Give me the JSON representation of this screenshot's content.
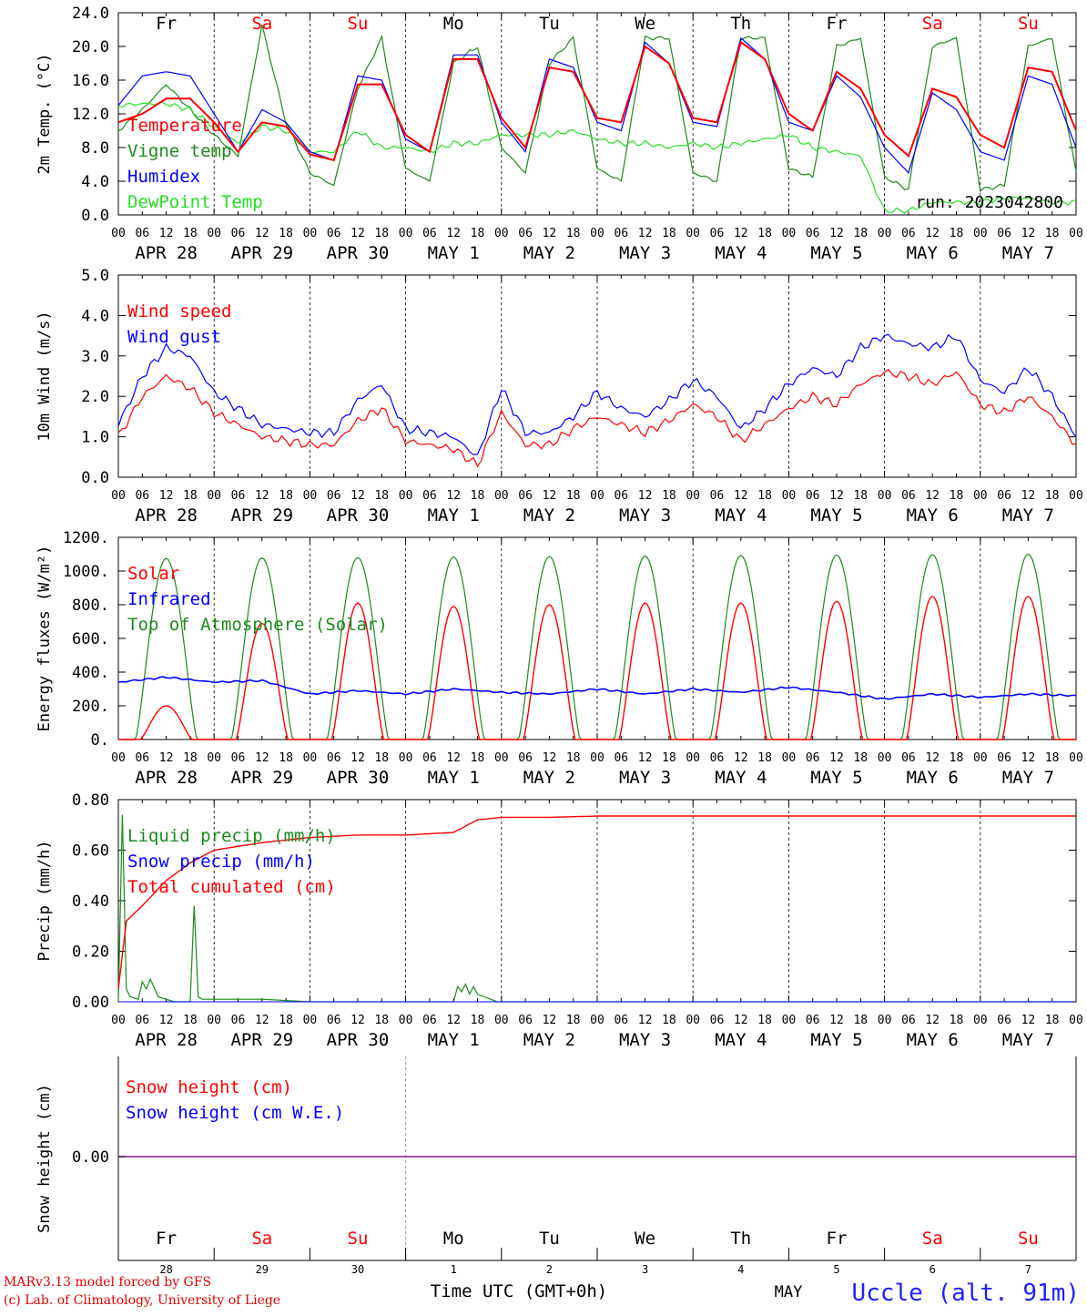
{
  "colors": {
    "red": "#ff0000",
    "dark_green": "#1c8a1c",
    "light_green": "#22e022",
    "blue": "#0000ff",
    "purple": "#8a1a8a",
    "black": "#000000",
    "weekend": "#ff0000",
    "station": "#2020ff"
  },
  "x_axis": {
    "range_hours": [
      0,
      240
    ],
    "hour_ticks": [
      "00",
      "06",
      "12",
      "18"
    ],
    "date_labels": [
      "APR 28",
      "APR 29",
      "APR 30",
      "MAY  1",
      "MAY  2",
      "MAY  3",
      "MAY  4",
      "MAY  5",
      "MAY  6",
      "MAY  7"
    ],
    "weekdays": [
      {
        "label": "Fr",
        "weekend": false
      },
      {
        "label": "Sa",
        "weekend": true
      },
      {
        "label": "Su",
        "weekend": true
      },
      {
        "label": "Mo",
        "weekend": false
      },
      {
        "label": "Tu",
        "weekend": false
      },
      {
        "label": "We",
        "weekend": false
      },
      {
        "label": "Th",
        "weekend": false
      },
      {
        "label": "Fr",
        "weekend": false
      },
      {
        "label": "Sa",
        "weekend": true
      },
      {
        "label": "Su",
        "weekend": true
      }
    ],
    "day_numbers": [
      "28",
      "29",
      "30",
      "1",
      "2",
      "3",
      "4",
      "5",
      "6",
      "7"
    ],
    "month_label": "MAY",
    "title": "Time UTC (GMT+0h)"
  },
  "footer": {
    "credit_line1": "MARv3.13 model forced by GFS",
    "credit_line2": "(c) Lab. of Climatology, University of Liege",
    "station": "Uccle (alt. 91m)"
  },
  "chart_data": [
    {
      "id": "temperature",
      "type": "line",
      "ylabel": "2m Temp. (°C)",
      "ylim": [
        0,
        24
      ],
      "yticks": [
        "0.0",
        "4.0",
        "8.0",
        "12.0",
        "16.0",
        "20.0",
        "24.0"
      ],
      "run_label": "run: 2023042800",
      "x_hours": [
        0,
        6,
        12,
        18,
        24,
        30,
        36,
        42,
        48,
        54,
        60,
        66,
        72,
        78,
        84,
        90,
        96,
        102,
        108,
        114,
        120,
        126,
        132,
        138,
        144,
        150,
        156,
        162,
        168,
        174,
        180,
        186,
        192,
        198,
        204,
        210,
        216,
        222,
        228,
        234,
        240
      ],
      "series": [
        {
          "name": "Temperature",
          "color_key": "red",
          "values": [
            11.0,
            12.0,
            13.8,
            13.8,
            11.0,
            7.5,
            11.0,
            10.5,
            7.2,
            6.5,
            15.5,
            15.5,
            9.5,
            7.5,
            18.5,
            18.5,
            11.5,
            8.0,
            17.5,
            17.0,
            11.5,
            11.0,
            20.0,
            18.0,
            11.5,
            11.0,
            20.5,
            18.5,
            12.0,
            10.0,
            17.0,
            15.0,
            9.5,
            7.0,
            15.0,
            14.0,
            9.5,
            8.0,
            17.5,
            17.0,
            10.0
          ]
        },
        {
          "name": "Vigne temp",
          "color_key": "dark_green",
          "values": [
            10.0,
            12.5,
            15.5,
            12.5,
            9.5,
            7.0,
            22.5,
            11.0,
            5.0,
            3.5,
            15.0,
            21.0,
            5.5,
            4.0,
            18.0,
            20.0,
            8.0,
            5.0,
            18.0,
            21.0,
            5.5,
            4.0,
            21.0,
            21.0,
            5.0,
            4.0,
            21.0,
            21.0,
            5.5,
            4.5,
            20.0,
            21.0,
            4.5,
            3.0,
            20.0,
            21.0,
            3.0,
            3.5,
            20.0,
            21.0,
            5.0
          ]
        },
        {
          "name": "Humidex",
          "color_key": "blue",
          "values": [
            13.0,
            16.5,
            17.0,
            16.5,
            12.0,
            7.5,
            12.5,
            11.0,
            7.5,
            6.5,
            16.5,
            16.0,
            9.0,
            7.5,
            19.0,
            19.0,
            11.0,
            7.5,
            18.5,
            17.5,
            11.0,
            10.0,
            20.5,
            18.0,
            11.0,
            10.5,
            21.0,
            18.5,
            11.0,
            10.0,
            16.5,
            14.0,
            8.0,
            5.0,
            14.5,
            12.5,
            7.5,
            6.5,
            16.5,
            15.5,
            8.0
          ]
        },
        {
          "name": "DewPoint Temp",
          "color_key": "light_green",
          "values": [
            13.0,
            13.2,
            13.2,
            12.5,
            10.5,
            8.5,
            10.5,
            10.0,
            7.5,
            7.5,
            10.0,
            8.0,
            8.0,
            7.5,
            8.5,
            8.5,
            9.5,
            9.5,
            9.5,
            10.0,
            9.0,
            8.5,
            8.5,
            8.0,
            8.5,
            8.0,
            8.5,
            9.0,
            9.5,
            8.0,
            7.5,
            7.0,
            0.5,
            0.5,
            1.5,
            1.5,
            1.5,
            2.0,
            2.0,
            1.5,
            1.5
          ]
        }
      ]
    },
    {
      "id": "wind",
      "type": "line",
      "ylabel": "10m Wind (m/s)",
      "ylim": [
        0,
        5
      ],
      "yticks": [
        "0.0",
        "1.0",
        "2.0",
        "3.0",
        "4.0",
        "5.0"
      ],
      "x_hours": [
        0,
        6,
        12,
        18,
        24,
        30,
        36,
        42,
        48,
        54,
        60,
        66,
        72,
        78,
        84,
        90,
        96,
        102,
        108,
        114,
        120,
        126,
        132,
        138,
        144,
        150,
        156,
        162,
        168,
        174,
        180,
        186,
        192,
        198,
        204,
        210,
        216,
        222,
        228,
        234,
        240
      ],
      "series": [
        {
          "name": "Wind speed",
          "color_key": "red",
          "values": [
            1.0,
            2.0,
            2.5,
            2.2,
            1.6,
            1.3,
            1.0,
            0.9,
            0.8,
            0.8,
            1.4,
            1.7,
            0.9,
            0.8,
            0.7,
            0.3,
            1.6,
            0.8,
            0.8,
            1.2,
            1.5,
            1.3,
            1.1,
            1.4,
            1.8,
            1.5,
            0.9,
            1.3,
            1.7,
            2.0,
            1.8,
            2.3,
            2.6,
            2.5,
            2.3,
            2.6,
            1.8,
            1.6,
            2.0,
            1.5,
            0.8
          ]
        },
        {
          "name": "Wind gust",
          "color_key": "blue",
          "values": [
            1.3,
            2.5,
            3.2,
            3.0,
            2.1,
            1.7,
            1.3,
            1.2,
            1.1,
            1.1,
            1.9,
            2.3,
            1.2,
            1.1,
            1.0,
            0.5,
            2.2,
            1.1,
            1.1,
            1.5,
            2.1,
            1.7,
            1.5,
            1.9,
            2.4,
            2.0,
            1.2,
            1.7,
            2.3,
            2.7,
            2.5,
            3.2,
            3.5,
            3.3,
            3.2,
            3.5,
            2.4,
            2.1,
            2.7,
            2.0,
            1.0
          ]
        }
      ]
    },
    {
      "id": "energy",
      "type": "line",
      "ylabel": "Energy fluxes (W/m²)",
      "ylim": [
        0,
        1200
      ],
      "yticks": [
        "0.",
        "200.",
        "400.",
        "600.",
        "800.",
        "1000.",
        "1200."
      ],
      "series": [
        {
          "name": "Solar",
          "color_key": "red",
          "daily_peak": [
            200,
            690,
            810,
            790,
            800,
            810,
            810,
            820,
            850,
            850
          ]
        },
        {
          "name": "Infrared",
          "color_key": "blue",
          "hours": [
            0,
            12,
            24,
            36,
            48,
            60,
            72,
            84,
            96,
            108,
            120,
            132,
            144,
            156,
            168,
            180,
            192,
            204,
            216,
            228,
            240
          ],
          "values": [
            340,
            370,
            340,
            350,
            270,
            290,
            270,
            300,
            280,
            270,
            300,
            270,
            300,
            280,
            310,
            280,
            240,
            270,
            250,
            270,
            260
          ]
        },
        {
          "name": "Top of Atmosphere (Solar)",
          "color_key": "dark_green",
          "daily_peak": [
            1075,
            1078,
            1080,
            1083,
            1086,
            1089,
            1092,
            1095,
            1098,
            1100
          ]
        }
      ]
    },
    {
      "id": "precip",
      "type": "line",
      "ylabel": "Precip (mm/h)",
      "ylim": [
        0,
        0.8
      ],
      "yticks": [
        "0.00",
        "0.20",
        "0.40",
        "0.60",
        "0.80"
      ],
      "series": [
        {
          "name": "Liquid precip (mm/h)",
          "color_key": "dark_green",
          "hours": [
            0,
            1,
            2,
            3,
            5,
            6,
            7,
            8,
            10,
            14,
            18,
            19,
            20,
            21,
            24,
            36,
            48,
            84,
            85,
            86,
            87,
            88,
            89,
            90,
            95,
            240
          ],
          "values": [
            0.0,
            0.74,
            0.05,
            0.02,
            0.01,
            0.08,
            0.05,
            0.09,
            0.02,
            0.0,
            0.0,
            0.38,
            0.02,
            0.01,
            0.01,
            0.01,
            0.0,
            0.0,
            0.06,
            0.04,
            0.07,
            0.03,
            0.06,
            0.03,
            0.0,
            0.0
          ]
        },
        {
          "name": "Snow precip (mm/h)",
          "color_key": "blue",
          "hours": [
            0,
            240
          ],
          "values": [
            0,
            0
          ]
        },
        {
          "name": "Total cumulated (cm)",
          "color_key": "red",
          "hours": [
            0,
            2,
            6,
            12,
            18,
            24,
            36,
            48,
            60,
            72,
            84,
            90,
            96,
            108,
            120,
            240
          ],
          "values": [
            0.05,
            0.32,
            0.38,
            0.48,
            0.55,
            0.6,
            0.63,
            0.65,
            0.66,
            0.66,
            0.67,
            0.72,
            0.73,
            0.73,
            0.735,
            0.735
          ]
        }
      ]
    },
    {
      "id": "snow",
      "type": "line",
      "ylabel": "Snow height (cm)",
      "ytick": "0.00",
      "series": [
        {
          "name": "Snow height (cm)",
          "color_key": "red",
          "value": 0
        },
        {
          "name": "Snow height (cm W.E.)",
          "color_key": "blue",
          "value": 0
        }
      ]
    }
  ]
}
